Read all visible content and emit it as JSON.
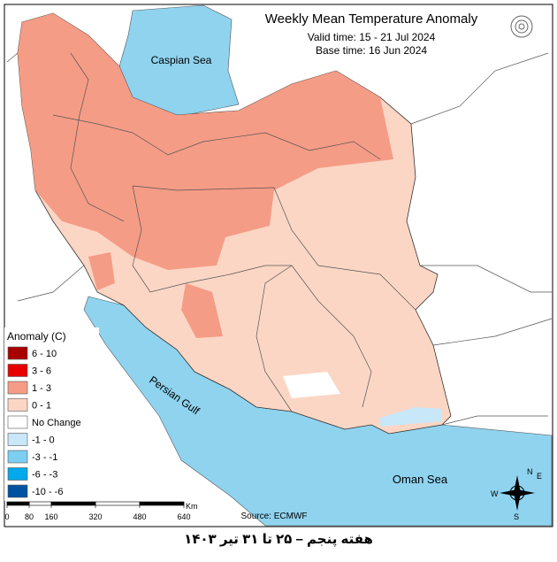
{
  "header": {
    "title": "Weekly Mean Temperature Anomaly",
    "valid_time": "Valid time: 15 - 21 Jul 2024",
    "base_time": "Base time: 16 Jun 2024"
  },
  "labels": {
    "caspian": "Caspian Sea",
    "gulf": "Persian Gulf",
    "oman": "Oman Sea"
  },
  "legend": {
    "title": "Anomaly (C)",
    "items": [
      {
        "label": "6 - 10",
        "color": "#a80000"
      },
      {
        "label": "3 - 6",
        "color": "#e60000"
      },
      {
        "label": "1 - 3",
        "color": "#f59c86"
      },
      {
        "label": "0 - 1",
        "color": "#fcd6c4"
      },
      {
        "label": "No Change",
        "color": "#ffffff"
      },
      {
        "label": "-1 - 0",
        "color": "#c8e7f8"
      },
      {
        "label": "-3 - -1",
        "color": "#7ccff0"
      },
      {
        "label": "-6 - -3",
        "color": "#00a9ec"
      },
      {
        "label": "-10 - -6",
        "color": "#0052a2"
      }
    ]
  },
  "scale_bar": {
    "ticks": [
      0,
      80,
      160,
      320,
      480,
      640
    ],
    "unit": "Km"
  },
  "compass": {
    "n": "N",
    "e": "E",
    "s": "S",
    "w": "W"
  },
  "source": "Source: ECMWF",
  "caption": "هفته پنجم – ۲۵ تا ۳۱ تیر ۱۴۰۳"
}
